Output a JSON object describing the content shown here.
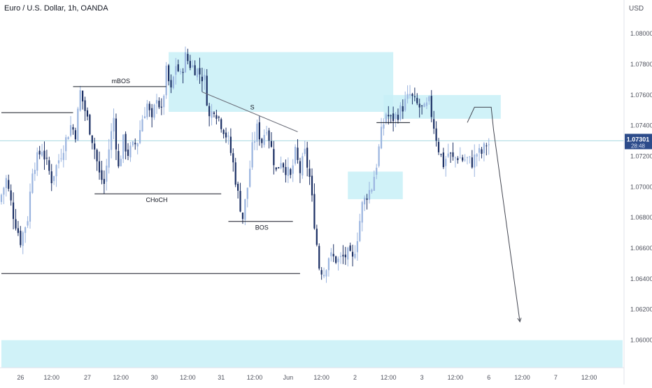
{
  "header": {
    "title": "Euro / U.S. Dollar, 1h, OANDA",
    "currency": "USD"
  },
  "colors": {
    "bull": "#9ab4df",
    "bear": "#1a2e63",
    "zone": "#c8f0f7",
    "line": "#131722",
    "price_tag": "#2c4b8a",
    "price_line": "#a8d8e0"
  },
  "chart_data": {
    "type": "candlestick",
    "y_min": 1.0582,
    "y_max": 1.0822,
    "x_count": 260,
    "y_ticks": [
      "1.08000",
      "1.07800",
      "1.07600",
      "1.07400",
      "1.07200",
      "1.07000",
      "1.06800",
      "1.06600",
      "1.06400",
      "1.06200",
      "1.06000"
    ],
    "y_tick_values": [
      1.08,
      1.078,
      1.076,
      1.074,
      1.072,
      1.07,
      1.068,
      1.066,
      1.064,
      1.062,
      1.06
    ],
    "x_ticks": [
      {
        "label": "26",
        "i": 8
      },
      {
        "label": "12:00",
        "i": 21
      },
      {
        "label": "27",
        "i": 36
      },
      {
        "label": "12:00",
        "i": 50
      },
      {
        "label": "30",
        "i": 64
      },
      {
        "label": "12:00",
        "i": 78
      },
      {
        "label": "31",
        "i": 92
      },
      {
        "label": "12:00",
        "i": 106
      },
      {
        "label": "Jun",
        "i": 120
      },
      {
        "label": "12:00",
        "i": 134
      },
      {
        "label": "2",
        "i": 148
      },
      {
        "label": "12:00",
        "i": 162
      },
      {
        "label": "3",
        "i": 176
      },
      {
        "label": "12:00",
        "i": 190
      },
      {
        "label": "6",
        "i": 204
      },
      {
        "label": "12:00",
        "i": 218
      },
      {
        "label": "7",
        "i": 232
      },
      {
        "label": "12:00",
        "i": 246
      }
    ],
    "last_price": {
      "value": 1.07301,
      "label": "1.07301",
      "countdown": "28:48"
    },
    "anchors": [
      [
        0,
        1.069
      ],
      [
        3,
        1.0705
      ],
      [
        6,
        1.0682
      ],
      [
        9,
        1.0665
      ],
      [
        12,
        1.068
      ],
      [
        14,
        1.0712
      ],
      [
        18,
        1.0725
      ],
      [
        22,
        1.0705
      ],
      [
        26,
        1.0722
      ],
      [
        30,
        1.074
      ],
      [
        32,
        1.0735
      ],
      [
        34,
        1.0762
      ],
      [
        36,
        1.075
      ],
      [
        38,
        1.0738
      ],
      [
        40,
        1.0725
      ],
      [
        42,
        1.0708
      ],
      [
        44,
        1.0702
      ],
      [
        46,
        1.0725
      ],
      [
        48,
        1.0745
      ],
      [
        50,
        1.0712
      ],
      [
        52,
        1.073
      ],
      [
        54,
        1.0722
      ],
      [
        58,
        1.073
      ],
      [
        60,
        1.0745
      ],
      [
        62,
        1.0754
      ],
      [
        64,
        1.0742
      ],
      [
        66,
        1.076
      ],
      [
        68,
        1.0748
      ],
      [
        70,
        1.0775
      ],
      [
        72,
        1.0762
      ],
      [
        74,
        1.078
      ],
      [
        76,
        1.0772
      ],
      [
        78,
        1.0785
      ],
      [
        80,
        1.078
      ],
      [
        83,
        1.0776
      ],
      [
        86,
        1.077
      ],
      [
        88,
        1.0745
      ],
      [
        90,
        1.0752
      ],
      [
        92,
        1.0745
      ],
      [
        94,
        1.0738
      ],
      [
        96,
        1.073
      ],
      [
        98,
        1.0715
      ],
      [
        100,
        1.0695
      ],
      [
        102,
        1.068
      ],
      [
        104,
        1.07
      ],
      [
        106,
        1.0725
      ],
      [
        108,
        1.0738
      ],
      [
        110,
        1.073
      ],
      [
        112,
        1.074
      ],
      [
        114,
        1.0725
      ],
      [
        116,
        1.071
      ],
      [
        118,
        1.0718
      ],
      [
        120,
        1.0712
      ],
      [
        122,
        1.0706
      ],
      [
        124,
        1.0722
      ],
      [
        126,
        1.071
      ],
      [
        128,
        1.0722
      ],
      [
        130,
        1.0706
      ],
      [
        132,
        1.0677
      ],
      [
        134,
        1.0648
      ],
      [
        136,
        1.0644
      ],
      [
        138,
        1.0655
      ],
      [
        142,
        1.0652
      ],
      [
        146,
        1.0656
      ],
      [
        148,
        1.0652
      ],
      [
        150,
        1.0668
      ],
      [
        152,
        1.0688
      ],
      [
        154,
        1.0695
      ],
      [
        156,
        1.07
      ],
      [
        158,
        1.0715
      ],
      [
        160,
        1.0735
      ],
      [
        162,
        1.0748
      ],
      [
        164,
        1.0744
      ],
      [
        166,
        1.0746
      ],
      [
        168,
        1.075
      ],
      [
        170,
        1.0755
      ],
      [
        172,
        1.076
      ],
      [
        174,
        1.0755
      ],
      [
        176,
        1.0752
      ],
      [
        178,
        1.075
      ],
      [
        180,
        1.0755
      ],
      [
        182,
        1.074
      ],
      [
        184,
        1.0725
      ],
      [
        186,
        1.0715
      ],
      [
        188,
        1.0722
      ],
      [
        190,
        1.0718
      ],
      [
        192,
        1.072
      ],
      [
        194,
        1.0718
      ],
      [
        196,
        1.0718
      ],
      [
        198,
        1.0716
      ],
      [
        200,
        1.0722
      ],
      [
        202,
        1.0722
      ],
      [
        204,
        1.0728
      ]
    ],
    "zones": [
      {
        "i0": 70,
        "i1": 164,
        "top": 1.0788,
        "bottom": 1.0749
      },
      {
        "i0": 160,
        "i1": 209,
        "top": 1.076,
        "bottom": 1.07445
      },
      {
        "i0": 145,
        "i1": 168,
        "top": 1.071,
        "bottom": 1.0692
      },
      {
        "i0": 0,
        "i1": 260,
        "top": 1.06,
        "bottom": 1.0582
      }
    ],
    "levels": [
      {
        "i0": 0,
        "i1": 30,
        "y": 1.07485
      },
      {
        "i0": 30,
        "i1": 69,
        "y": 1.07655,
        "label": "mBOS",
        "label_i": 50
      },
      {
        "i0": 39,
        "i1": 92,
        "y": 1.06955,
        "label": "CHoCH",
        "label_i": 65
      },
      {
        "i0": 95,
        "i1": 122,
        "y": 1.06775,
        "label": "BOS",
        "label_i": 109
      },
      {
        "i0": 0,
        "i1": 125,
        "y": 1.06435
      },
      {
        "i0": 157,
        "i1": 171,
        "y": 1.0742
      }
    ],
    "trendline": {
      "i0": 84,
      "y0": 1.0762,
      "i1": 124,
      "y1": 1.0736,
      "label": "S",
      "label_i": 105
    },
    "projection": [
      [
        195,
        1.0742
      ],
      [
        198,
        1.0752
      ],
      [
        205,
        1.0752
      ],
      [
        206,
        1.0737
      ],
      [
        217,
        1.0612
      ]
    ]
  }
}
